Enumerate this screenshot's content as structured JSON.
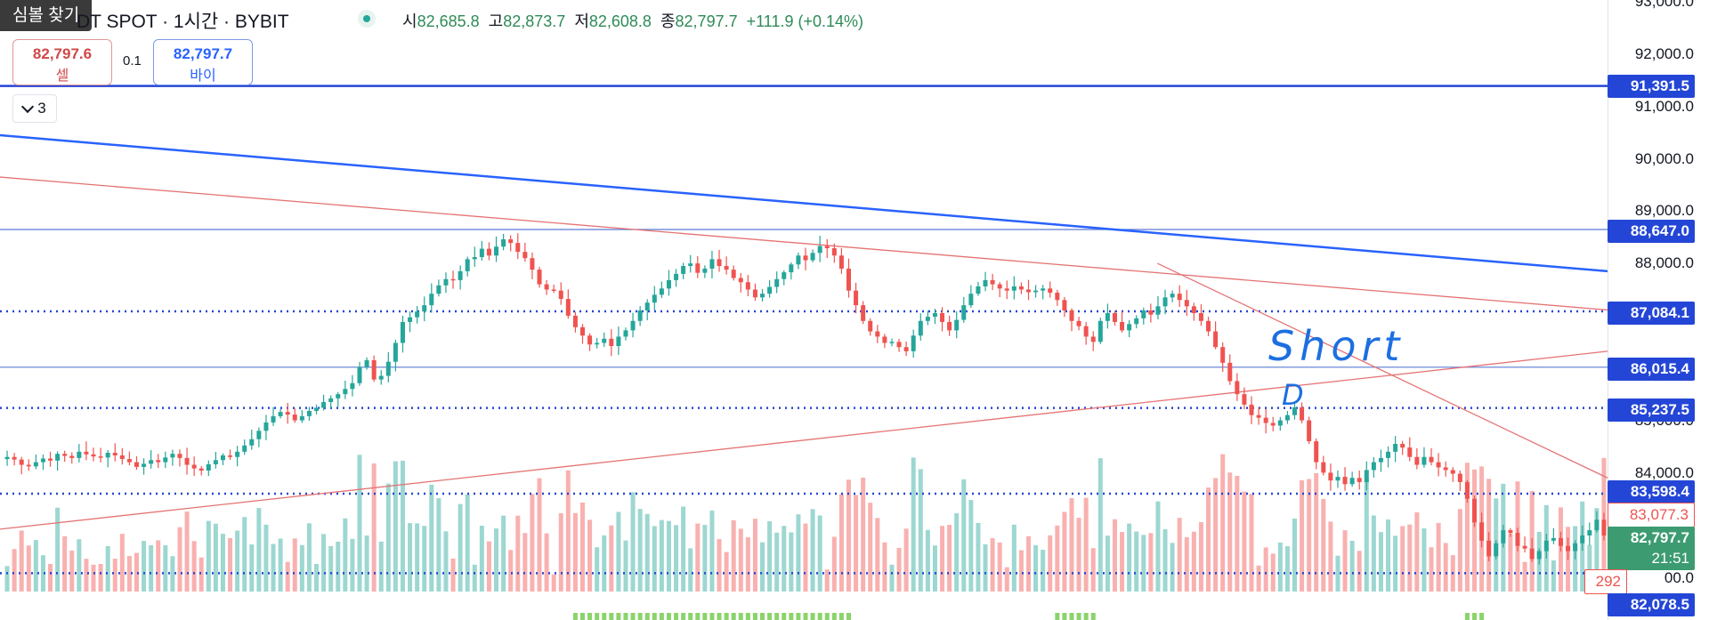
{
  "topbar": {
    "symbol_search_label": "심볼 찾기",
    "symbol_text": "DT SPOT · 1시간 · BYBIT",
    "open_label": "시",
    "open_value": "82,685.8",
    "high_label": "고",
    "high_value": "82,873.7",
    "low_label": "저",
    "low_value": "82,608.8",
    "close_label": "종",
    "close_value": "82,797.7",
    "change": "+111.9 (+0.14%)"
  },
  "trade": {
    "sell_price": "82,797.6",
    "sell_label": "셀",
    "qty": "0.1",
    "buy_price": "82,797.7",
    "buy_label": "바이"
  },
  "indicators_toggle": {
    "count": "3"
  },
  "annotation": {
    "text": "Short",
    "mark": "D"
  },
  "colors": {
    "up": "#26a69a",
    "down": "#ef5350",
    "trendline_blue": "#2962ff",
    "trendline_red": "#e57373",
    "level_blue": "#2446d6"
  },
  "axis": {
    "ticks": [
      "93,000.0",
      "92,000.0",
      "91,000.0",
      "90,000.0",
      "89,000.0",
      "88,000.0",
      "85,000.0",
      "84,000.0",
      "00.0",
      "00.0"
    ],
    "labels": {
      "l91391": "91,391.5",
      "l88647": "88,647.0",
      "l87084": "87,084.1",
      "l86015": "86,015.4",
      "l85237": "85,237.5",
      "l83598": "83,598.4",
      "l83077": "83,077.3",
      "last": "82,797.7",
      "countdown": "21:51",
      "volume": "292",
      "l82078": "82,078.5"
    }
  },
  "chart_data": {
    "type": "candlestick",
    "timeframe": "1시간",
    "exchange": "BYBIT",
    "ylim": [
      81900,
      93100
    ],
    "last_price": 82797.7,
    "horizontal_levels": [
      {
        "price": 91391.5,
        "style": "solid",
        "color": "#2446d6"
      },
      {
        "price": 88647.0,
        "style": "thin",
        "color": "#5b7bd5"
      },
      {
        "price": 87084.1,
        "style": "dotted",
        "color": "#2446d6"
      },
      {
        "price": 86015.4,
        "style": "thin",
        "color": "#5b7bd5"
      },
      {
        "price": 85237.5,
        "style": "dotted",
        "color": "#2446d6"
      },
      {
        "price": 83598.4,
        "style": "dotted",
        "color": "#2446d6"
      },
      {
        "price": 82078.5,
        "style": "dotted",
        "color": "#2446d6"
      }
    ],
    "trendlines": [
      {
        "name": "blue-descending",
        "from": [
          0,
          90450
        ],
        "to": [
          1.0,
          87850
        ],
        "color": "#2962ff"
      },
      {
        "name": "red-descending-upper",
        "from": [
          0,
          89650
        ],
        "to": [
          1.0,
          87110
        ],
        "color": "#e57373"
      },
      {
        "name": "red-ascending",
        "from": [
          0,
          82920
        ],
        "to": [
          1.0,
          86320
        ],
        "color": "#e57373"
      },
      {
        "name": "red-descending-steep",
        "from": [
          0.72,
          88000
        ],
        "to": [
          1.0,
          83900
        ],
        "color": "#e57373"
      }
    ],
    "closes": [
      84300,
      84250,
      84150,
      84120,
      84200,
      84270,
      84230,
      84360,
      84320,
      84280,
      84400,
      84350,
      84310,
      84290,
      84380,
      84330,
      84260,
      84200,
      84110,
      84170,
      84240,
      84200,
      84290,
      84360,
      84280,
      84150,
      84080,
      84040,
      84160,
      84240,
      84330,
      84300,
      84400,
      84520,
      84640,
      84800,
      84960,
      85080,
      85160,
      85110,
      85000,
      85080,
      85180,
      85240,
      85350,
      85420,
      85500,
      85600,
      85710,
      86020,
      86150,
      85780,
      85850,
      86120,
      86480,
      86880,
      86970,
      87080,
      87200,
      87420,
      87580,
      87700,
      87680,
      87850,
      88080,
      88120,
      88280,
      88150,
      88320,
      88460,
      88390,
      88220,
      88100,
      87880,
      87600,
      87500,
      87480,
      87320,
      87000,
      86780,
      86620,
      86450,
      86480,
      86560,
      86420,
      86600,
      86720,
      86900,
      87100,
      87250,
      87400,
      87520,
      87680,
      87800,
      87950,
      88000,
      87820,
      87900,
      88080,
      87950,
      87880,
      87720,
      87640,
      87500,
      87350,
      87420,
      87550,
      87700,
      87830,
      87980,
      88150,
      88060,
      88200,
      88330,
      88290,
      88150,
      87900,
      87480,
      87200,
      86900,
      86700,
      86600,
      86480,
      86500,
      86400,
      86320,
      86620,
      86900,
      86980,
      87050,
      86880,
      86720,
      86920,
      87200,
      87420,
      87560,
      87680,
      87600,
      87520,
      87480,
      87560,
      87500,
      87450,
      87480,
      87520,
      87440,
      87300,
      87100,
      86900,
      86800,
      86600,
      86500,
      86900,
      87050,
      86880,
      86720,
      86840,
      86950,
      87100,
      87020,
      87180,
      87350,
      87420,
      87300,
      87180,
      87050,
      86900,
      86700,
      86400,
      86100,
      85750,
      85500,
      85300,
      85100,
      85050,
      84950,
      84900,
      85000,
      85100,
      85250,
      85000,
      84600,
      84200,
      84000,
      83850,
      83920,
      83780,
      83900,
      83820,
      84050,
      84200,
      84280,
      84400,
      84550,
      84480,
      84300,
      84150,
      84300,
      84200,
      84100,
      84050,
      83980,
      83820,
      83500,
      83050,
      82700,
      82400,
      82650,
      82900,
      82850,
      82600,
      82550,
      82350,
      82500,
      82700,
      82750,
      82600,
      82500,
      82650,
      82800,
      82900,
      83100,
      82798
    ]
  }
}
